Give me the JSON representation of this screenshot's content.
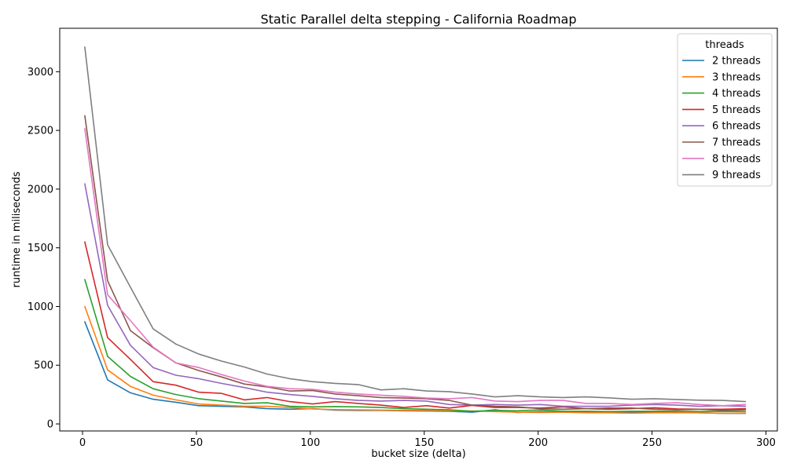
{
  "chart_data": {
    "type": "line",
    "title": "Static Parallel delta stepping - California Roadmap",
    "xlabel": "bucket size (delta)",
    "ylabel": "runtime in miliseconds",
    "xlim": [
      -10,
      305
    ],
    "ylim": [
      -60,
      3370
    ],
    "xticks": [
      0,
      50,
      100,
      150,
      200,
      250,
      300
    ],
    "yticks": [
      0,
      500,
      1000,
      1500,
      2000,
      2500,
      3000
    ],
    "grid": false,
    "legend": {
      "title": "threads",
      "placement": "top-right"
    },
    "x": [
      1,
      11,
      21,
      31,
      41,
      51,
      61,
      71,
      81,
      91,
      101,
      111,
      121,
      131,
      141,
      151,
      161,
      171,
      181,
      191,
      201,
      211,
      221,
      231,
      241,
      251,
      261,
      271,
      281,
      291
    ],
    "series": [
      {
        "name": "2 threads",
        "color": "#1f77b4",
        "values": [
          870,
          375,
          265,
          210,
          185,
          155,
          150,
          145,
          130,
          125,
          130,
          118,
          115,
          115,
          112,
          110,
          108,
          100,
          120,
          98,
          105,
          100,
          105,
          98,
          100,
          100,
          98,
          95,
          90,
          90
        ]
      },
      {
        "name": "3 threads",
        "color": "#ff7f0e",
        "values": [
          1000,
          460,
          320,
          245,
          205,
          170,
          160,
          150,
          150,
          140,
          128,
          122,
          120,
          118,
          115,
          115,
          112,
          110,
          105,
          100,
          98,
          100,
          95,
          95,
          92,
          95,
          95,
          95,
          90,
          92
        ]
      },
      {
        "name": "4 threads",
        "color": "#2ca02c",
        "values": [
          1230,
          575,
          405,
          300,
          250,
          215,
          195,
          175,
          180,
          150,
          145,
          148,
          145,
          140,
          130,
          125,
          120,
          108,
          115,
          112,
          120,
          108,
          108,
          105,
          108,
          108,
          108,
          105,
          108,
          105
        ]
      },
      {
        "name": "5 threads",
        "color": "#d62728",
        "values": [
          1550,
          735,
          550,
          360,
          330,
          270,
          260,
          205,
          225,
          190,
          170,
          190,
          175,
          160,
          140,
          155,
          135,
          158,
          140,
          140,
          135,
          145,
          130,
          125,
          130,
          138,
          128,
          125,
          125,
          130
        ]
      },
      {
        "name": "6 threads",
        "color": "#9467bd",
        "values": [
          2045,
          1010,
          670,
          480,
          415,
          385,
          345,
          310,
          270,
          250,
          235,
          215,
          200,
          195,
          200,
          195,
          165,
          160,
          165,
          160,
          165,
          150,
          150,
          150,
          160,
          165,
          160,
          150,
          155,
          150
        ]
      },
      {
        "name": "7 threads",
        "color": "#8c564b",
        "values": [
          2625,
          1220,
          795,
          650,
          520,
          455,
          400,
          340,
          315,
          280,
          285,
          255,
          240,
          225,
          220,
          215,
          200,
          160,
          150,
          145,
          130,
          125,
          130,
          135,
          135,
          125,
          120,
          125,
          115,
          120
        ]
      },
      {
        "name": "8 threads",
        "color": "#e377c2",
        "values": [
          2515,
          1100,
          880,
          655,
          520,
          480,
          420,
          365,
          320,
          300,
          295,
          270,
          255,
          245,
          235,
          220,
          215,
          225,
          195,
          190,
          200,
          200,
          175,
          175,
          165,
          175,
          180,
          165,
          155,
          165
        ]
      },
      {
        "name": "9 threads",
        "color": "#7f7f7f",
        "values": [
          3210,
          1525,
          1165,
          810,
          680,
          595,
          535,
          485,
          425,
          385,
          360,
          345,
          335,
          290,
          300,
          280,
          275,
          255,
          230,
          240,
          230,
          225,
          230,
          222,
          210,
          215,
          208,
          202,
          200,
          190
        ]
      }
    ]
  }
}
